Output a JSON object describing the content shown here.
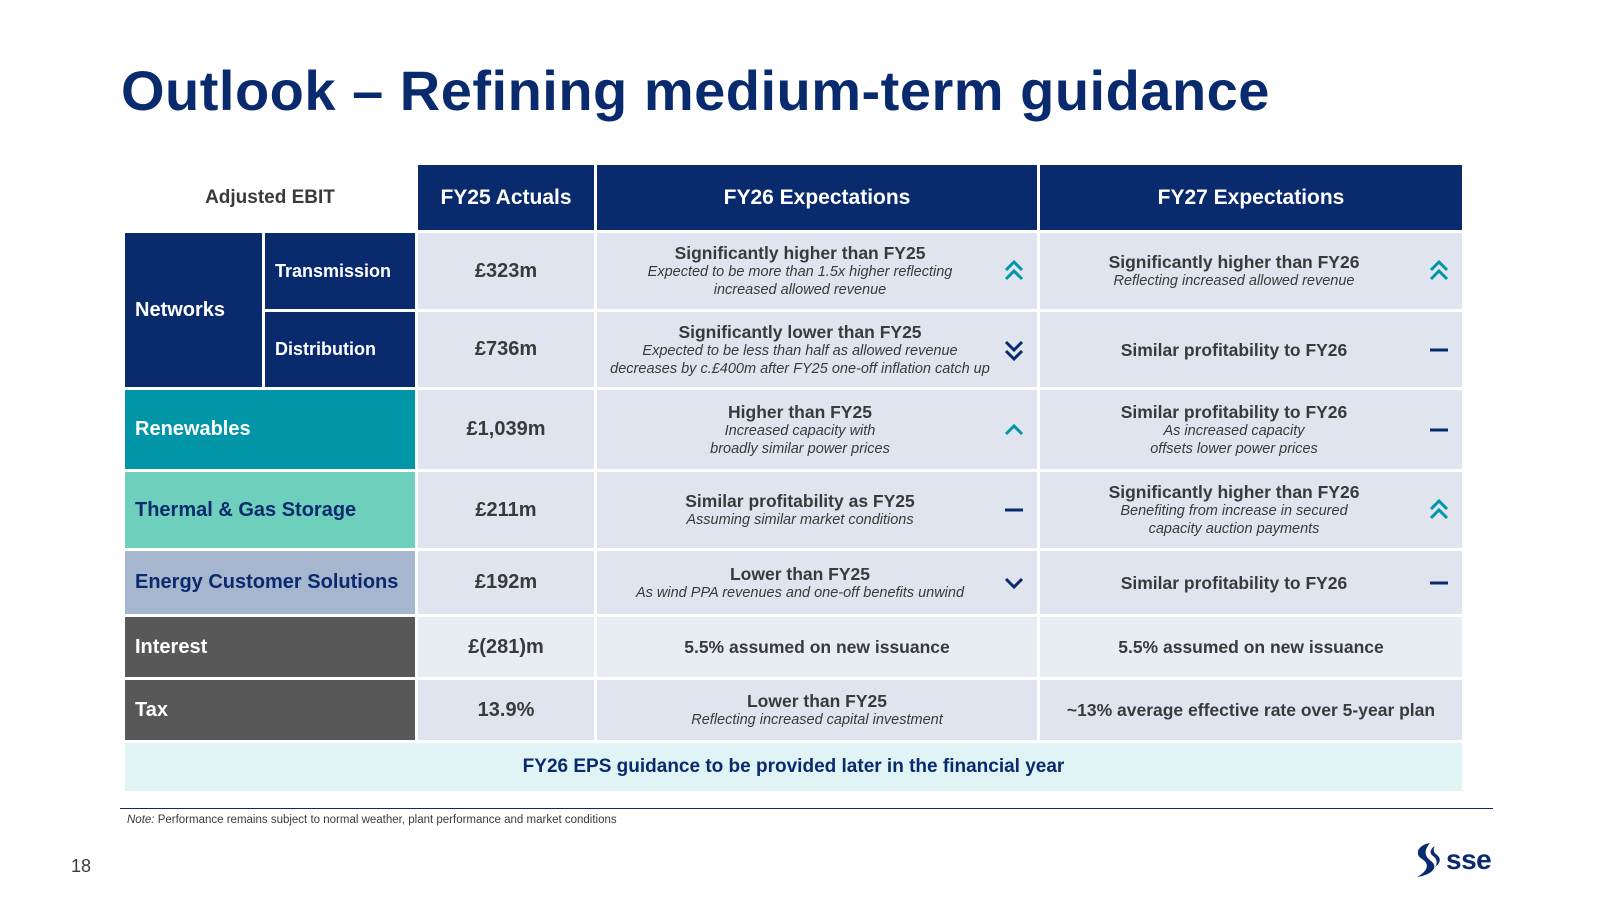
{
  "title": "Outlook – Refining medium-term guidance",
  "table": {
    "headers": {
      "metric": "Adjusted EBIT",
      "fy25": "FY25 Actuals",
      "fy26": "FY26 Expectations",
      "fy27": "FY27 Expectations"
    },
    "networks_label": "Networks",
    "rows": [
      {
        "segment": "Transmission",
        "fy25": "£323m",
        "fy26": {
          "headline": "Significantly higher than FY25",
          "line1": "Expected to be more than 1.5x higher reflecting",
          "line2": "increased allowed revenue",
          "icon": "double-up-chevron-icon"
        },
        "fy27": {
          "headline": "Significantly higher than FY26",
          "line1": "Reflecting increased allowed revenue",
          "line2": "",
          "icon": "double-up-chevron-icon"
        }
      },
      {
        "segment": "Distribution",
        "fy25": "£736m",
        "fy26": {
          "headline": "Significantly lower than FY25",
          "line1": "Expected to be less than half as allowed revenue",
          "line2": "decreases by c.£400m after FY25 one-off inflation catch up",
          "icon": "double-down-chevron-icon"
        },
        "fy27": {
          "headline": "Similar profitability to FY26",
          "line1": "",
          "line2": "",
          "icon": "dash-icon"
        }
      },
      {
        "segment": "Renewables",
        "fy25": "£1,039m",
        "fy26": {
          "headline": "Higher than FY25",
          "line1": "Increased capacity with",
          "line2": "broadly similar power prices",
          "icon": "up-chevron-icon"
        },
        "fy27": {
          "headline": "Similar profitability to FY26",
          "line1": "As increased capacity",
          "line2": "offsets lower power prices",
          "icon": "dash-icon"
        }
      },
      {
        "segment": "Thermal & Gas Storage",
        "fy25": "£211m",
        "fy26": {
          "headline": "Similar profitability as FY25",
          "line1": "Assuming similar market conditions",
          "line2": "",
          "icon": "dash-icon"
        },
        "fy27": {
          "headline": "Significantly higher than FY26",
          "line1": "Benefiting from increase in secured",
          "line2": "capacity auction payments",
          "icon": "double-up-chevron-icon"
        }
      },
      {
        "segment": "Energy Customer Solutions",
        "fy25": "£192m",
        "fy26": {
          "headline": "Lower than FY25",
          "line1": "As wind PPA revenues and one-off benefits unwind",
          "line2": "",
          "icon": "down-chevron-icon"
        },
        "fy27": {
          "headline": "Similar profitability to FY26",
          "line1": "",
          "line2": "",
          "icon": "dash-icon"
        }
      },
      {
        "segment": "Interest",
        "fy25": "£(281)m",
        "fy26": {
          "headline": "5.5% assumed on new issuance",
          "line1": "",
          "line2": ""
        },
        "fy27": {
          "headline": "5.5% assumed on new issuance",
          "line1": "",
          "line2": ""
        }
      },
      {
        "segment": "Tax",
        "fy25": "13.9%",
        "fy26": {
          "headline": "Lower than FY25",
          "line1": "Reflecting increased capital investment",
          "line2": ""
        },
        "fy27": {
          "headline": "~13% average effective rate over 5-year plan",
          "line1": "",
          "line2": ""
        }
      }
    ],
    "eps_banner": "FY26 EPS guidance to be provided later in the financial year"
  },
  "footnote": {
    "label": "Note:",
    "text": " Performance remains subject to normal weather, plant performance and market conditions"
  },
  "page_number": "18",
  "logo_text": "sse",
  "colors": {
    "navy": "#0a2a6e",
    "teal": "#0096a8",
    "mint": "#6dcfbc",
    "slate": "#a7b6cf",
    "grey": "#585858",
    "icon_teal": "#0096a8",
    "icon_navy": "#0a2a6e"
  }
}
